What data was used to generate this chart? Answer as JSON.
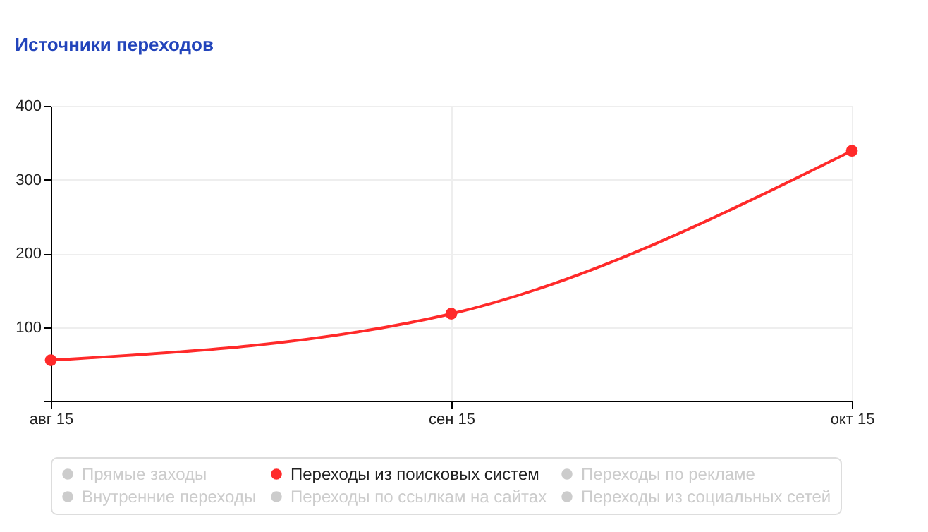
{
  "chart_data": {
    "type": "line",
    "title": "Источники переходов",
    "categories": [
      "авг 15",
      "сен 15",
      "окт 15"
    ],
    "series": [
      {
        "name": "Прямые заходы",
        "color": "#cccccc",
        "values": [
          null,
          null,
          null
        ]
      },
      {
        "name": "Переходы из поисковых систем",
        "color": "#ff2a2a",
        "values": [
          55,
          118,
          339
        ]
      },
      {
        "name": "Переходы по рекламе",
        "color": "#cccccc",
        "values": [
          null,
          null,
          null
        ]
      },
      {
        "name": "Внутренние переходы",
        "color": "#cccccc",
        "values": [
          null,
          null,
          null
        ]
      },
      {
        "name": "Переходы по ссылкам на сайтах",
        "color": "#cccccc",
        "values": [
          null,
          null,
          null
        ]
      },
      {
        "name": "Переходы из социальных сетей",
        "color": "#cccccc",
        "values": [
          null,
          null,
          null
        ]
      }
    ],
    "ylim": [
      0,
      400
    ],
    "yticks": [
      {
        "value": 0,
        "label": null
      },
      100,
      200,
      300,
      400
    ],
    "grid": true,
    "legend": "bottom",
    "marker": "circle",
    "line_style": "solid"
  }
}
